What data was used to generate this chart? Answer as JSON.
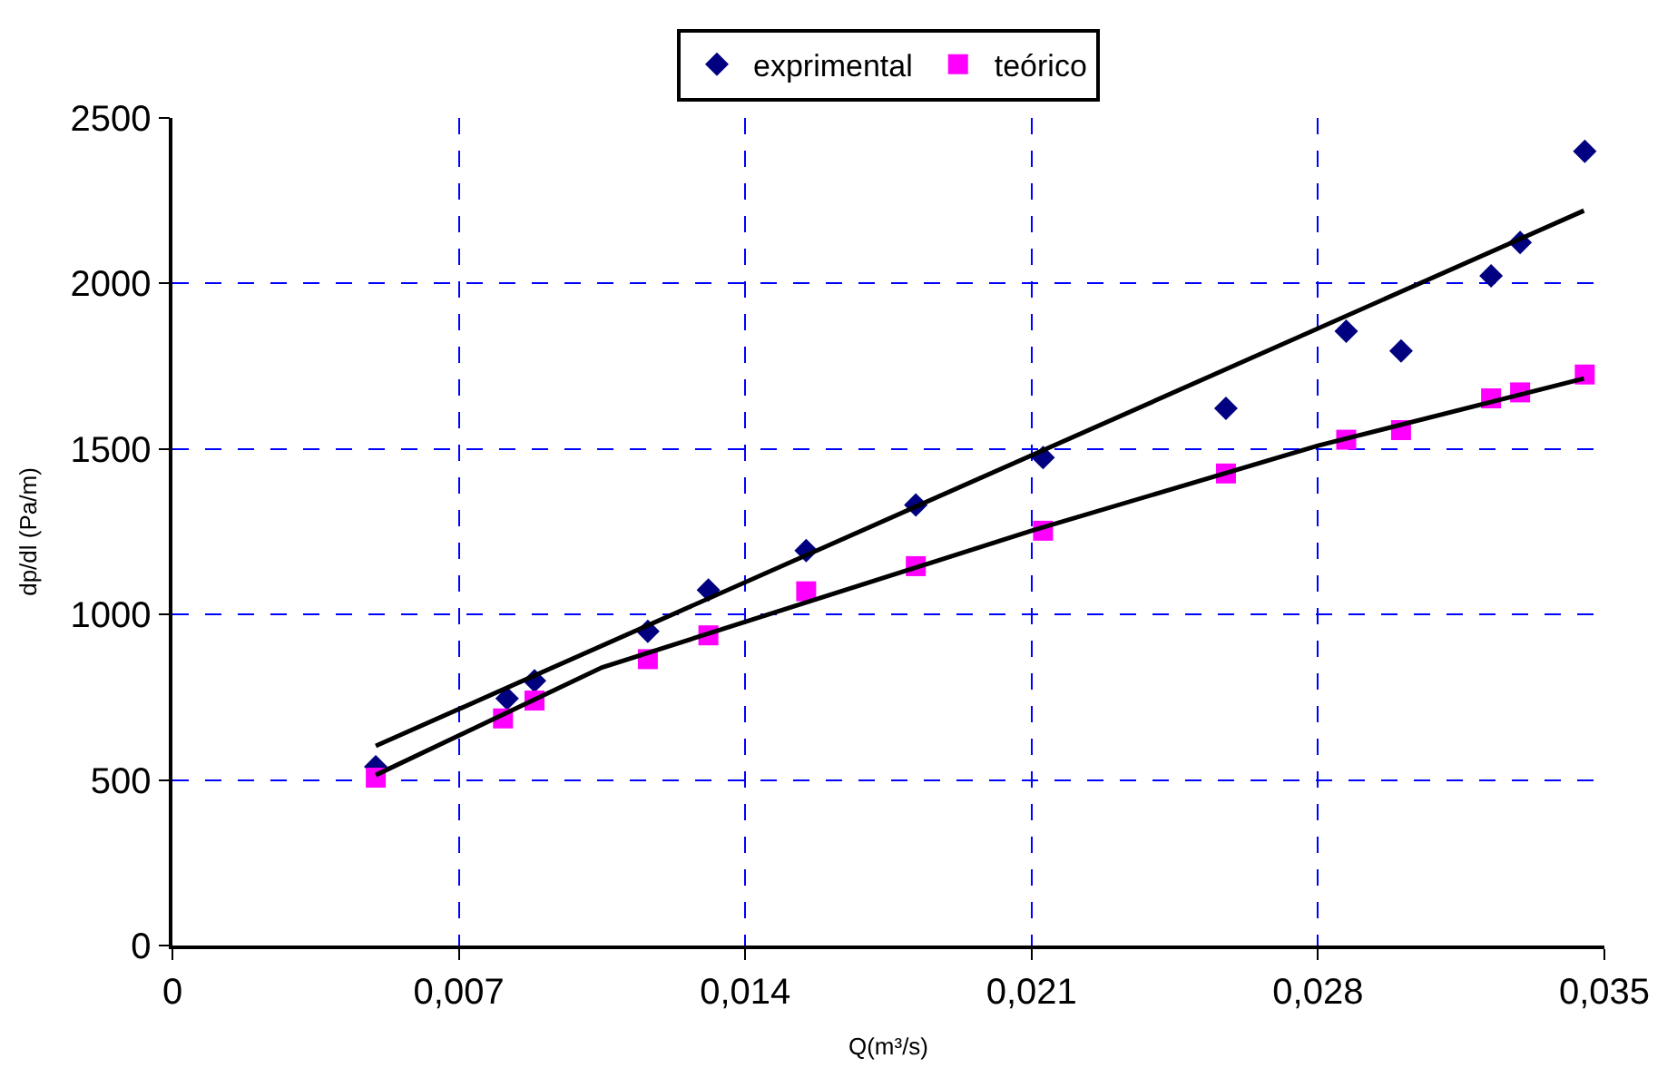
{
  "chart_data": {
    "type": "scatter",
    "xlabel": "Q(m³/s)",
    "ylabel": "dp/dl (Pa/m)",
    "xlim": [
      0,
      0.035
    ],
    "xticks": [
      0,
      {
        "value": 0.007,
        "label": "0,007"
      },
      {
        "value": 0.014,
        "label": "0,014"
      },
      {
        "value": 0.021,
        "label": "0,021"
      },
      {
        "value": 0.028,
        "label": "0,028"
      },
      {
        "value": 0.035,
        "label": "0,035"
      }
    ],
    "ylim": [
      0,
      2500
    ],
    "yticks": [
      0,
      500,
      1000,
      1500,
      2000,
      2500
    ],
    "grid": true,
    "legend": "top",
    "series": [
      {
        "name": "exprimental",
        "color": "#000080",
        "marker": "diamond",
        "x": [
          0.00497,
          0.00818,
          0.00885,
          0.01162,
          0.0131,
          0.01549,
          0.01817,
          0.02128,
          0.02575,
          0.02869,
          0.03003,
          0.03223,
          0.03294,
          0.03452
        ],
        "values": [
          540,
          746,
          800,
          949,
          1074,
          1193,
          1331,
          1474,
          1623,
          1856,
          1796,
          2023,
          2124,
          2399
        ]
      },
      {
        "name": "teórico",
        "color": "#ff00ff",
        "marker": "square",
        "x": [
          0.00497,
          0.00808,
          0.00885,
          0.01162,
          0.0131,
          0.01549,
          0.01817,
          0.02128,
          0.02575,
          0.02869,
          0.03003,
          0.03223,
          0.03294,
          0.03452
        ],
        "values": [
          507,
          686,
          740,
          865,
          937,
          1070,
          1146,
          1253,
          1426,
          1528,
          1557,
          1653,
          1671,
          1725
        ]
      },
      {
        "type": "line",
        "color": "#000000",
        "marker": "none",
        "x": [
          0.00497,
          0.0345
        ],
        "values": [
          603,
          2220
        ]
      },
      {
        "type": "line",
        "color": "#000000",
        "marker": "none",
        "x": [
          0.00497,
          0.0105,
          0.021,
          0.028,
          0.0345
        ],
        "values": [
          515,
          840,
          1253,
          1510,
          1713
        ]
      }
    ]
  }
}
